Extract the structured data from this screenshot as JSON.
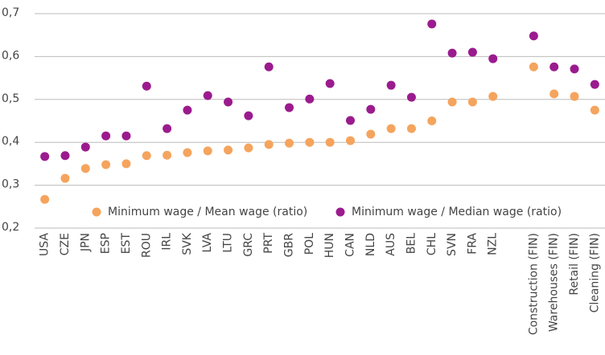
{
  "chart_data": {
    "type": "scatter",
    "categories": [
      "USA",
      "CZE",
      "JPN",
      "ESP",
      "EST",
      "ROU",
      "IRL",
      "SVK",
      "LVA",
      "LTU",
      "GRC",
      "PRT",
      "GBR",
      "POL",
      "HUN",
      "CAN",
      "NLD",
      "AUS",
      "BEL",
      "CHL",
      "SVN",
      "FRA",
      "NZL",
      null,
      "Construction (FIN)",
      "Warehouses (FIN)",
      "Retail (FIN)",
      "Cleaning (FIN)"
    ],
    "series": [
      {
        "name": "Minimum wage / Mean wage (ratio)",
        "color": "#f5a45d",
        "values": [
          0.267,
          0.316,
          0.339,
          0.348,
          0.35,
          0.369,
          0.37,
          0.376,
          0.38,
          0.382,
          0.387,
          0.395,
          0.398,
          0.4,
          0.4,
          0.404,
          0.419,
          0.432,
          0.432,
          0.45,
          0.494,
          0.494,
          0.507,
          null,
          0.576,
          0.513,
          0.507,
          0.475
        ]
      },
      {
        "name": "Minimum wage / Median wage (ratio)",
        "color": "#9b1b8e",
        "values": [
          0.367,
          0.369,
          0.389,
          0.415,
          0.415,
          0.531,
          0.432,
          0.475,
          0.509,
          0.494,
          0.462,
          0.576,
          0.481,
          0.501,
          0.537,
          0.451,
          0.477,
          0.533,
          0.505,
          0.676,
          0.608,
          0.61,
          0.595,
          null,
          0.648,
          0.576,
          0.571,
          0.535
        ]
      }
    ],
    "ylim": [
      0.2,
      0.7
    ],
    "yticks": [
      {
        "value": 0.2,
        "label": "0,2"
      },
      {
        "value": 0.3,
        "label": "0,3"
      },
      {
        "value": 0.4,
        "label": "0,4"
      },
      {
        "value": 0.5,
        "label": "0,5"
      },
      {
        "value": 0.6,
        "label": "0,6"
      },
      {
        "value": 0.7,
        "label": "0,7"
      }
    ],
    "grid": true
  }
}
